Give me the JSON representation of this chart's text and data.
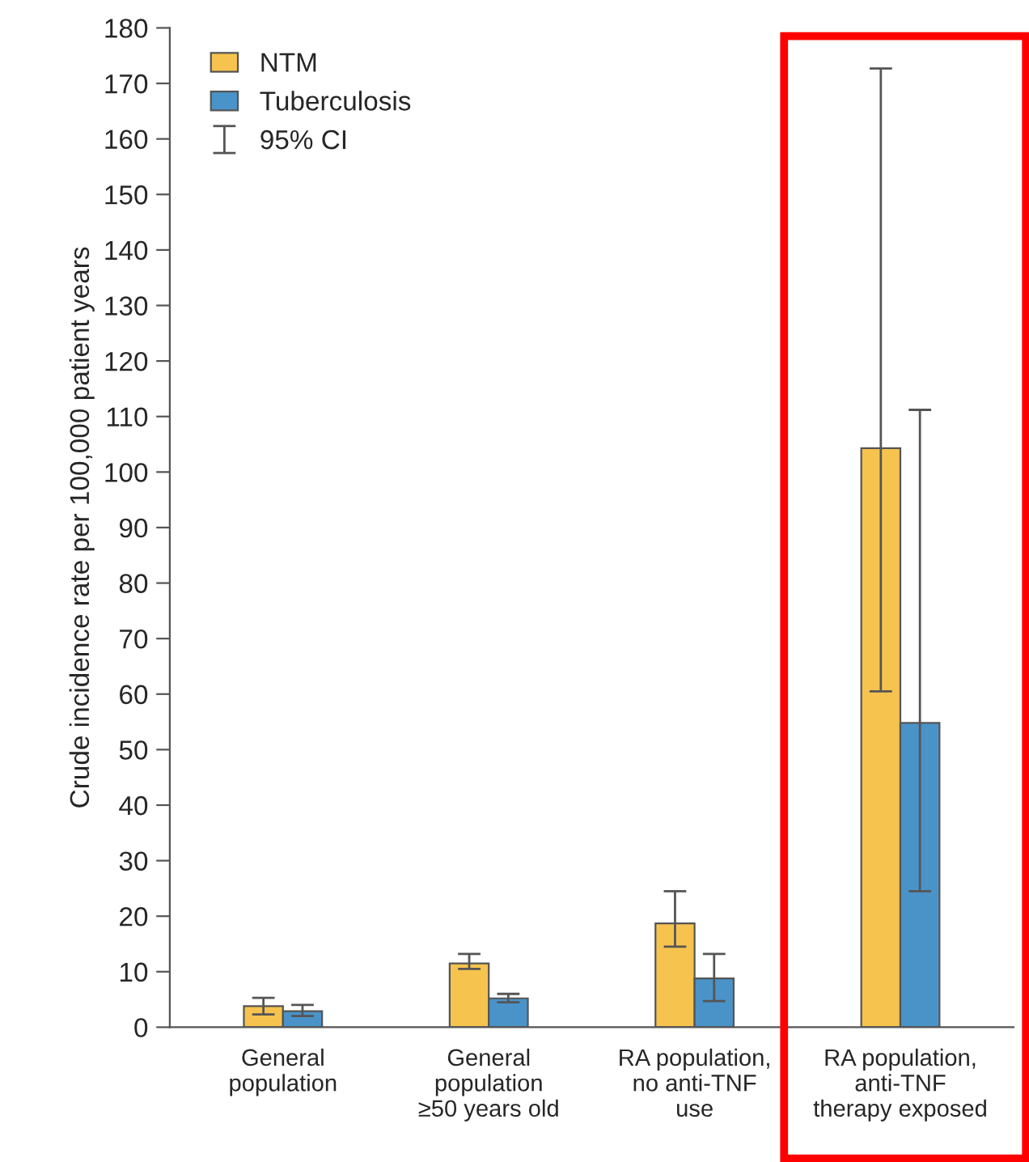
{
  "chart_data": {
    "type": "bar",
    "ylabel": "Crude incidence rate per 100,000 patient years",
    "categories": [
      "General\npopulation",
      "General\npopulation\n≥50 years old",
      "RA population,\nno anti-TNF\nuse",
      "RA population,\nanti-TNF\ntherapy exposed"
    ],
    "series": [
      {
        "name": "NTM",
        "color": "#f7c34f",
        "values": [
          3.8,
          11.5,
          18.7,
          104.3
        ],
        "errors": [
          [
            2.3,
            5.3
          ],
          [
            10.5,
            13.2
          ],
          [
            14.5,
            24.5
          ],
          [
            60.5,
            172.7
          ]
        ]
      },
      {
        "name": "Tuberculosis",
        "color": "#4a93c8",
        "values": [
          2.9,
          5.2,
          8.8,
          54.8
        ],
        "errors": [
          [
            2.0,
            4.0
          ],
          [
            4.5,
            6.0
          ],
          [
            4.7,
            13.2
          ],
          [
            24.5,
            111.2
          ]
        ]
      }
    ],
    "annotations": [
      "95% CI"
    ],
    "ylim": [
      0,
      180
    ],
    "yticks": [
      0,
      10,
      20,
      30,
      40,
      50,
      60,
      70,
      80,
      90,
      100,
      110,
      120,
      130,
      140,
      150,
      160,
      170,
      180
    ],
    "legend": "top left",
    "grid": false
  }
}
